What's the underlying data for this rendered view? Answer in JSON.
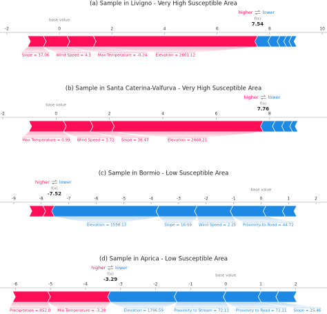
{
  "chart_data": [
    {
      "type": "force",
      "title": "(a)  Sample in Livigno - Very High Susceptible Area",
      "xlim": [
        -2.26,
        10.18
      ],
      "xticks": [
        -2,
        0,
        2,
        4,
        6,
        8,
        10
      ],
      "base_value_label": "base value",
      "base_value": 0,
      "fx_label": "f(x)",
      "fx": 7.54,
      "higher": "higher",
      "lower": "lower",
      "positive": {
        "labels": [
          "Slope = 37.06",
          "Wind Speed = 4.3",
          "Max Temperature = -0.24",
          "Elevation = 2801.12"
        ],
        "values": [
          0.6,
          0.9,
          1.0,
          6.25
        ],
        "color": "#ff0d57"
      },
      "negative": {
        "labels": [
          null,
          null,
          null,
          null,
          null
        ],
        "values": [
          0.5,
          0.35,
          0.25,
          0.2,
          0.19
        ],
        "color": "#1e88e5"
      }
    },
    {
      "type": "force",
      "title": "(b)  Sample in Santa Caterina-Valfurva - Very High Susceptible Area",
      "xlim": [
        -2.1,
        10.15
      ],
      "xticks": [
        -2,
        0,
        2,
        4,
        6,
        8
      ],
      "base_value_label": "base value",
      "base_value": 0,
      "fx_label": "f(x)",
      "fx": 7.76,
      "higher": "higher",
      "lower": "lower",
      "positive": {
        "labels": [
          "Max Temperature = 0.99",
          "Wind Speed = 3.72",
          "Slope = 36.47",
          "Elevation = 2668.21"
        ],
        "values": [
          1.3,
          1.0,
          0.8,
          5.68
        ],
        "color": "#ff0d57"
      },
      "negative": {
        "labels": [
          null,
          null,
          null,
          null
        ],
        "values": [
          0.45,
          0.35,
          0.3,
          0.2
        ],
        "color": "#1e88e5"
      }
    },
    {
      "type": "force",
      "title": "(c)  Sample in Bormio - Low Susceptible Area",
      "xlim": [
        -9.5,
        2.4
      ],
      "xticks": [
        -9,
        -8,
        -7,
        -6,
        -5,
        -4,
        -3,
        -2,
        -1,
        0,
        1,
        2
      ],
      "base_value_label": "base value",
      "base_value": 0,
      "fx_label": "f(x)",
      "fx": -7.52,
      "higher": "higher",
      "lower": "lower",
      "positive": {
        "labels": [
          null,
          null
        ],
        "values": [
          0.5,
          0.42
        ],
        "color": "#ff0d57"
      },
      "negative": {
        "labels": [
          "Elevation = 1558.13",
          "Slope = 16.09",
          "Wind Speed = 2.25",
          "Proximity to Road = 44.72",
          null,
          null
        ],
        "values": [
          3.8,
          1.4,
          1.3,
          1.2,
          0.7,
          0.42
        ],
        "color": "#1e88e5"
      }
    },
    {
      "type": "force",
      "title": "(d)  Sample in Aprica - Low Susceptible Area",
      "xlim": [
        -6.44,
        2.89
      ],
      "xticks": [
        -6,
        -5,
        -4,
        -3,
        -2,
        -1,
        0,
        1,
        2
      ],
      "base_value_label": "base value",
      "base_value": 0,
      "fx_label": "f(x)",
      "fx": -3.29,
      "higher": "higher",
      "lower": "lower",
      "positive": {
        "labels": [
          "Precipitation = 852.0",
          "Min Temperature = -3.28"
        ],
        "values": [
          1.0,
          1.79
        ],
        "color": "#ff0d57"
      },
      "negative": {
        "labels": [
          "Elevation = 1796.59",
          "Proximity to Stream = 72.11",
          "Proximity to Road = 72.11",
          "Slope = 25.46",
          null
        ],
        "values": [
          1.9,
          1.4,
          1.0,
          0.5,
          0.52
        ],
        "color": "#1e88e5"
      }
    }
  ]
}
